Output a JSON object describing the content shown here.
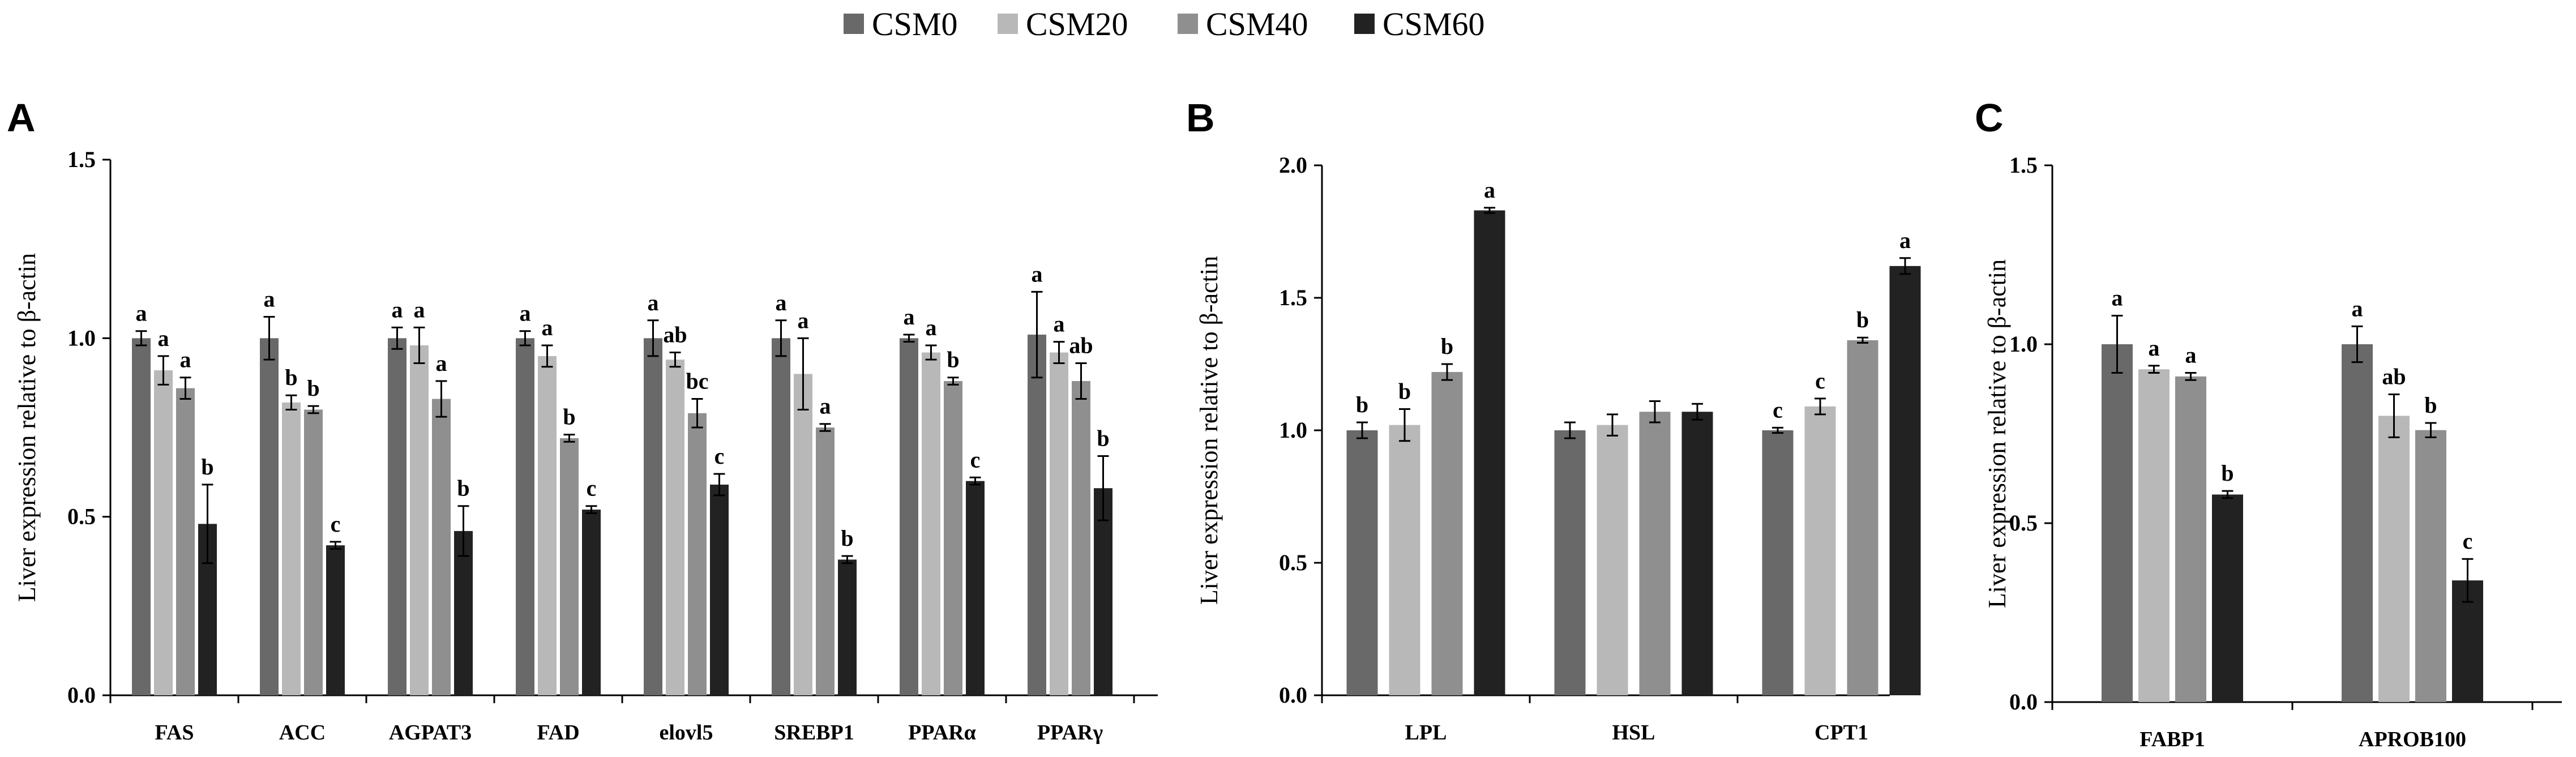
{
  "legend": [
    {
      "name": "CSM0",
      "color": "#696969"
    },
    {
      "name": "CSM20",
      "color": "#b8b8b8"
    },
    {
      "name": "CSM40",
      "color": "#8f8f8f"
    },
    {
      "name": "CSM60",
      "color": "#222222"
    }
  ],
  "chart_data": [
    {
      "type": "bar",
      "panel": "A",
      "ylabel": "Liver expression relative to β-actin",
      "ylim": [
        0,
        1.5
      ],
      "yticks": [
        "0.0",
        "0.5",
        "1.0",
        "1.5"
      ],
      "categories": [
        "FAS",
        "ACC",
        "AGPAT3",
        "FAD",
        "elovl5",
        "SREBP1",
        "PPARα",
        "PPARγ"
      ],
      "series": [
        {
          "name": "CSM0",
          "values": [
            1.0,
            1.0,
            1.0,
            1.0,
            1.0,
            1.0,
            1.0,
            1.01
          ],
          "errors": [
            0.02,
            0.06,
            0.03,
            0.02,
            0.05,
            0.05,
            0.01,
            0.12
          ],
          "labels": [
            "a",
            "a",
            "a",
            "a",
            "a",
            "a",
            "a",
            "a"
          ]
        },
        {
          "name": "CSM20",
          "values": [
            0.91,
            0.82,
            0.98,
            0.95,
            0.94,
            0.9,
            0.96,
            0.96
          ],
          "errors": [
            0.04,
            0.02,
            0.05,
            0.03,
            0.02,
            0.1,
            0.02,
            0.03
          ],
          "labels": [
            "a",
            "b",
            "a",
            "a",
            "ab",
            "a",
            "a",
            "a"
          ]
        },
        {
          "name": "CSM40",
          "values": [
            0.86,
            0.8,
            0.83,
            0.72,
            0.79,
            0.75,
            0.88,
            0.88
          ],
          "errors": [
            0.03,
            0.01,
            0.05,
            0.01,
            0.04,
            0.01,
            0.01,
            0.05
          ],
          "labels": [
            "a",
            "b",
            "a",
            "b",
            "bc",
            "a",
            "b",
            "ab"
          ]
        },
        {
          "name": "CSM60",
          "values": [
            0.48,
            0.42,
            0.46,
            0.52,
            0.59,
            0.38,
            0.6,
            0.58
          ],
          "errors": [
            0.11,
            0.01,
            0.07,
            0.01,
            0.03,
            0.01,
            0.01,
            0.09
          ],
          "labels": [
            "b",
            "c",
            "b",
            "c",
            "c",
            "b",
            "c",
            "b"
          ]
        }
      ]
    },
    {
      "type": "bar",
      "panel": "B",
      "ylabel": "Liver expression relative to β-actin",
      "ylim": [
        0,
        2.0
      ],
      "yticks": [
        "0.0",
        "0.5",
        "1.0",
        "1.5",
        "2.0"
      ],
      "categories": [
        "LPL",
        "HSL",
        "CPT1"
      ],
      "series": [
        {
          "name": "CSM0",
          "values": [
            1.0,
            1.0,
            1.0
          ],
          "errors": [
            0.03,
            0.03,
            0.01
          ],
          "labels": [
            "b",
            "",
            "c"
          ]
        },
        {
          "name": "CSM20",
          "values": [
            1.02,
            1.02,
            1.09
          ],
          "errors": [
            0.06,
            0.04,
            0.03
          ],
          "labels": [
            "b",
            "",
            "c"
          ]
        },
        {
          "name": "CSM40",
          "values": [
            1.22,
            1.07,
            1.34
          ],
          "errors": [
            0.03,
            0.04,
            0.01
          ],
          "labels": [
            "b",
            "",
            "b"
          ]
        },
        {
          "name": "CSM60",
          "values": [
            1.83,
            1.07,
            1.62
          ],
          "errors": [
            0.01,
            0.03,
            0.03
          ],
          "labels": [
            "a",
            "",
            "a"
          ]
        }
      ]
    },
    {
      "type": "bar",
      "panel": "C",
      "ylabel": "Liver expression relative to β-actin",
      "ylim": [
        0,
        1.5
      ],
      "yticks": [
        "0.0",
        "0.5",
        "1.0",
        "1.5"
      ],
      "categories": [
        "FABP1",
        "APROB100"
      ],
      "series": [
        {
          "name": "CSM0",
          "values": [
            1.0,
            1.0
          ],
          "errors": [
            0.08,
            0.05
          ],
          "labels": [
            "a",
            "a"
          ]
        },
        {
          "name": "CSM20",
          "values": [
            0.93,
            0.8
          ],
          "errors": [
            0.01,
            0.06
          ],
          "labels": [
            "a",
            "ab"
          ]
        },
        {
          "name": "CSM40",
          "values": [
            0.91,
            0.76
          ],
          "errors": [
            0.01,
            0.02
          ],
          "labels": [
            "a",
            "b"
          ]
        },
        {
          "name": "CSM60",
          "values": [
            0.58,
            0.34
          ],
          "errors": [
            0.01,
            0.06
          ],
          "labels": [
            "b",
            "c"
          ]
        }
      ]
    }
  ]
}
